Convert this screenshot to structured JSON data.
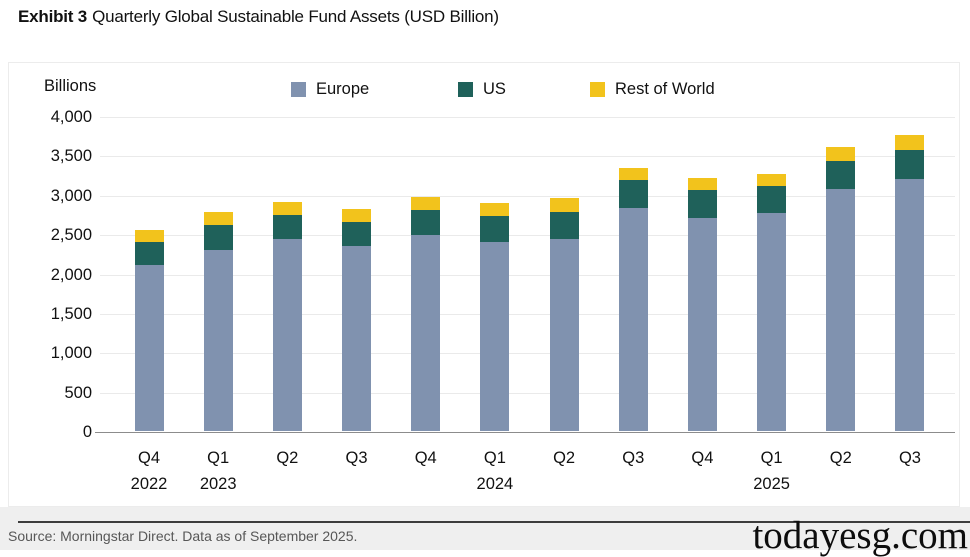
{
  "title": {
    "exhibit_label": "Exhibit 3",
    "text": "Quarterly Global Sustainable Fund Assets (USD Billion)"
  },
  "chart_data": {
    "type": "bar",
    "stacked": true,
    "title": "Quarterly Global Sustainable Fund Assets (USD Billion)",
    "ylabel": "Billions",
    "xlabel": "",
    "ylim": [
      0,
      4000
    ],
    "grid": true,
    "legend_position": "top",
    "categories": [
      {
        "label": "Q4",
        "year": "2022"
      },
      {
        "label": "Q1",
        "year": "2023"
      },
      {
        "label": "Q2"
      },
      {
        "label": "Q3"
      },
      {
        "label": "Q4"
      },
      {
        "label": "Q1",
        "year": "2024"
      },
      {
        "label": "Q2"
      },
      {
        "label": "Q3"
      },
      {
        "label": "Q4"
      },
      {
        "label": "Q1",
        "year": "2025"
      },
      {
        "label": "Q2"
      },
      {
        "label": "Q3"
      }
    ],
    "series": [
      {
        "name": "Europe",
        "color": "#8092AF",
        "values": [
          2110,
          2300,
          2435,
          2350,
          2485,
          2400,
          2435,
          2830,
          2700,
          2765,
          3075,
          3205
        ]
      },
      {
        "name": "US",
        "color": "#1F615A",
        "values": [
          290,
          310,
          305,
          305,
          320,
          330,
          350,
          355,
          355,
          345,
          350,
          365
        ]
      },
      {
        "name": "Rest of World",
        "color": "#F2C31C",
        "values": [
          150,
          165,
          165,
          160,
          165,
          160,
          170,
          155,
          160,
          155,
          180,
          190
        ]
      }
    ],
    "yticks": [
      {
        "value": 0,
        "label": "0"
      },
      {
        "value": 500,
        "label": "500"
      },
      {
        "value": 1000,
        "label": "1,000"
      },
      {
        "value": 1500,
        "label": "1,500"
      },
      {
        "value": 2000,
        "label": "2,000"
      },
      {
        "value": 2500,
        "label": "2,500"
      },
      {
        "value": 3000,
        "label": "3,000"
      },
      {
        "value": 3500,
        "label": "3,500"
      },
      {
        "value": 4000,
        "label": "4,000"
      }
    ]
  },
  "colors": {
    "europe": "#8092AF",
    "us": "#1F615A",
    "rest_of_world": "#F2C31C",
    "gridline": "#eaeaea",
    "axis_line": "#8c8c8c"
  },
  "footer": {
    "source": "Source: Morningstar Direct. Data as of September 2025.",
    "watermark": "todayesg.com"
  }
}
